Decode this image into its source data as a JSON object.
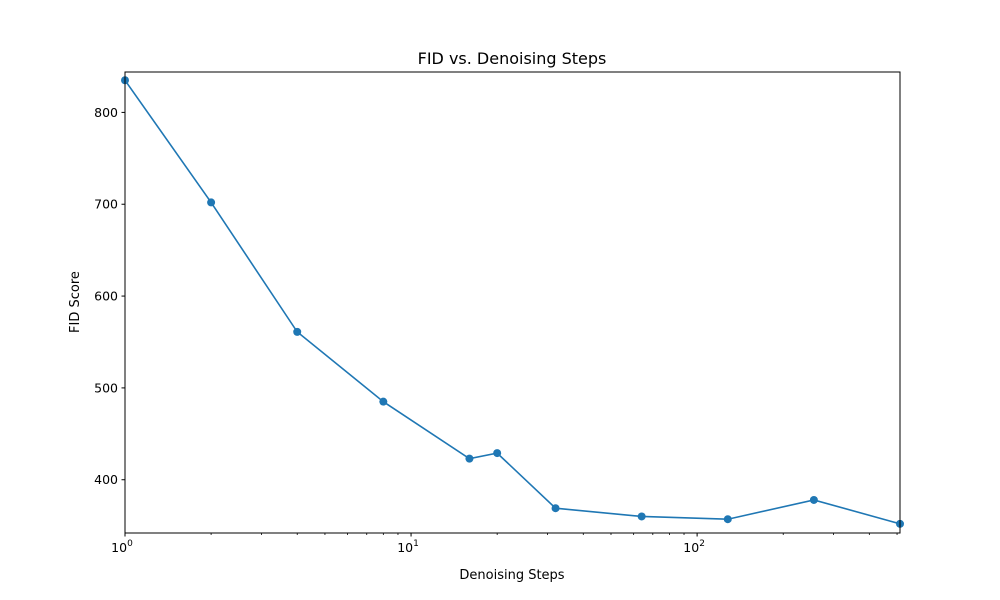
{
  "chart_data": {
    "type": "line",
    "title": "FID vs. Denoising Steps",
    "xlabel": "Denoising Steps",
    "ylabel": "FID Score",
    "xscale": "log",
    "xlim": [
      1,
      512
    ],
    "ylim": [
      342,
      844
    ],
    "xticks": [
      {
        "base": "10",
        "exp": "0",
        "value": 1
      },
      {
        "base": "10",
        "exp": "1",
        "value": 10
      },
      {
        "base": "10",
        "exp": "2",
        "value": 100
      }
    ],
    "yticks": [
      "400",
      "500",
      "600",
      "700",
      "800"
    ],
    "grid": false,
    "series": [
      {
        "color": "#1f77b4",
        "marker": "circle",
        "x": [
          1,
          2,
          4,
          8,
          16,
          20,
          32,
          64,
          128,
          256,
          512
        ],
        "y": [
          835,
          702,
          561,
          485,
          423,
          429,
          369,
          360,
          357,
          378,
          352
        ]
      }
    ]
  }
}
